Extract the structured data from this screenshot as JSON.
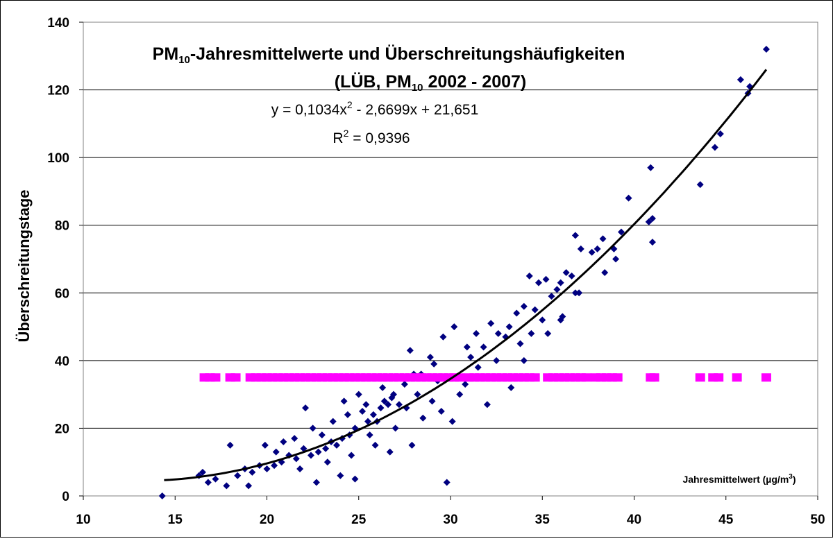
{
  "chart_data": {
    "type": "scatter",
    "title": [
      [
        "PM",
        "10",
        "-Jahresmittelwerte und Überschreitungshäufigkeiten"
      ],
      [
        "(LÜB, PM",
        "10",
        " 2002 - 2007)"
      ]
    ],
    "x_label": [
      "Jahresmittelwert (µg/m",
      "3",
      ")"
    ],
    "y_label": "Überschreitungstage",
    "xlim": [
      10,
      50
    ],
    "xticks": [
      10,
      15,
      20,
      25,
      30,
      35,
      40,
      45,
      50
    ],
    "ylim": [
      0,
      140
    ],
    "yticks": [
      0,
      20,
      40,
      60,
      80,
      100,
      120,
      140
    ],
    "grid": true,
    "trendline": {
      "equation": [
        "y = 0,1034x",
        "2",
        " - 2,6699x + 21,651"
      ],
      "r_squared": [
        "R",
        "2",
        " = 0,9396"
      ],
      "coefficients": [
        0.1034,
        -2.6699,
        21.651
      ],
      "x_range": [
        14.4,
        47.2
      ],
      "color": "#000000"
    },
    "series": [
      {
        "marker": "diamond",
        "color": "#000080",
        "x": [
          14.3,
          47.2,
          45.8,
          46.3,
          46.2,
          44.4,
          44.7,
          43.6,
          40.9,
          39.7,
          40.8,
          41.0,
          41.0,
          39.3,
          39.0,
          38.9,
          38.3,
          38.0,
          37.7,
          38.4,
          37.1,
          36.8,
          36.6,
          36.3,
          36.0,
          35.8,
          35.5,
          36.1,
          36.0,
          35.2,
          34.8,
          34.6,
          34.3,
          35.3,
          36.8,
          37.0,
          34.0,
          33.6,
          33.2,
          33.0,
          32.6,
          32.2,
          31.8,
          31.4,
          31.1,
          30.9,
          30.2,
          29.6,
          29.1,
          28.9,
          28.4,
          27.8,
          28.0,
          27.5,
          26.9,
          26.6,
          26.2,
          25.8,
          25.5,
          25.2,
          24.8,
          24.5,
          24.1,
          23.8,
          23.5,
          23.2,
          22.8,
          22.4,
          22.0,
          21.6,
          21.2,
          20.8,
          20.4,
          20.0,
          19.6,
          19.2,
          18.8,
          18.4,
          18.0,
          17.8,
          17.2,
          16.8,
          16.5,
          16.3,
          19.0,
          19.9,
          20.9,
          22.1,
          22.7,
          24.0,
          24.8,
          26.7,
          27.9,
          29.8,
          30.1,
          32.0,
          33.3,
          34.0,
          31.5,
          30.5,
          29.5,
          28.5,
          27.0,
          26.0,
          25.0,
          24.2,
          23.6,
          22.5,
          21.5,
          20.5,
          26.4,
          26.8,
          27.2,
          25.6,
          25.9,
          24.6,
          23.3,
          21.8,
          31.0,
          32.5,
          29.3,
          28.2,
          27.6,
          26.3,
          25.4,
          24.4,
          23.0,
          33.8,
          34.4,
          35.0,
          30.8,
          29.0
        ],
        "values": [
          0,
          132,
          123,
          121,
          119,
          103,
          107,
          92,
          97,
          88,
          81,
          82,
          75,
          78,
          70,
          73,
          76,
          73,
          72,
          66,
          73,
          77,
          65,
          66,
          63,
          61,
          59,
          53,
          52,
          64,
          63,
          55,
          65,
          48,
          60,
          60,
          56,
          54,
          50,
          47,
          48,
          51,
          44,
          48,
          41,
          44,
          50,
          47,
          39,
          41,
          36,
          43,
          36,
          33,
          30,
          27,
          26,
          24,
          22,
          25,
          20,
          18,
          17,
          15,
          16,
          14,
          13,
          12,
          14,
          11,
          12,
          10,
          9,
          8,
          9,
          7,
          8,
          6,
          15,
          3,
          5,
          4,
          7,
          6,
          3,
          15,
          16,
          26,
          4,
          6,
          5,
          13,
          15,
          4,
          22,
          27,
          32,
          40,
          38,
          30,
          25,
          23,
          20,
          22,
          30,
          28,
          22,
          20,
          17,
          13,
          28,
          29,
          27,
          18,
          15,
          12,
          10,
          8,
          35,
          40,
          34,
          30,
          26,
          32,
          27,
          24,
          18,
          45,
          48,
          52,
          33,
          28
        ]
      },
      {
        "marker": "square",
        "color": "#FF00FF",
        "x": [
          16.6,
          16.9,
          17.2,
          18.0,
          18.3,
          19.1,
          19.4,
          19.7,
          20.0,
          20.3,
          20.6,
          20.9,
          21.2,
          21.5,
          21.8,
          22.1,
          22.4,
          22.7,
          23.0,
          23.3,
          23.6,
          23.9,
          24.2,
          24.5,
          24.8,
          25.1,
          25.4,
          25.7,
          26.0,
          26.3,
          26.6,
          26.9,
          27.2,
          27.5,
          27.8,
          28.1,
          28.4,
          28.7,
          29.0,
          29.3,
          29.6,
          29.9,
          30.2,
          30.5,
          31.0,
          31.3,
          31.6,
          31.9,
          32.2,
          32.5,
          32.8,
          33.1,
          33.4,
          33.7,
          34.0,
          34.3,
          34.6,
          35.3,
          35.6,
          35.9,
          36.2,
          36.5,
          36.8,
          37.1,
          37.4,
          37.9,
          38.2,
          38.5,
          38.8,
          39.1,
          40.9,
          41.1,
          43.6,
          44.3,
          44.6,
          45.6,
          47.2
        ],
        "values": [
          35,
          35,
          35,
          35,
          35,
          35,
          35,
          35,
          35,
          35,
          35,
          35,
          35,
          35,
          35,
          35,
          35,
          35,
          35,
          35,
          35,
          35,
          35,
          35,
          35,
          35,
          35,
          35,
          35,
          35,
          35,
          35,
          35,
          35,
          35,
          35,
          35,
          35,
          35,
          35,
          35,
          35,
          35,
          35,
          35,
          35,
          35,
          35,
          35,
          35,
          35,
          35,
          35,
          35,
          35,
          35,
          35,
          35,
          35,
          35,
          35,
          35,
          35,
          35,
          35,
          35,
          35,
          35,
          35,
          35,
          35,
          35,
          35,
          35,
          35,
          35,
          35
        ]
      }
    ]
  }
}
